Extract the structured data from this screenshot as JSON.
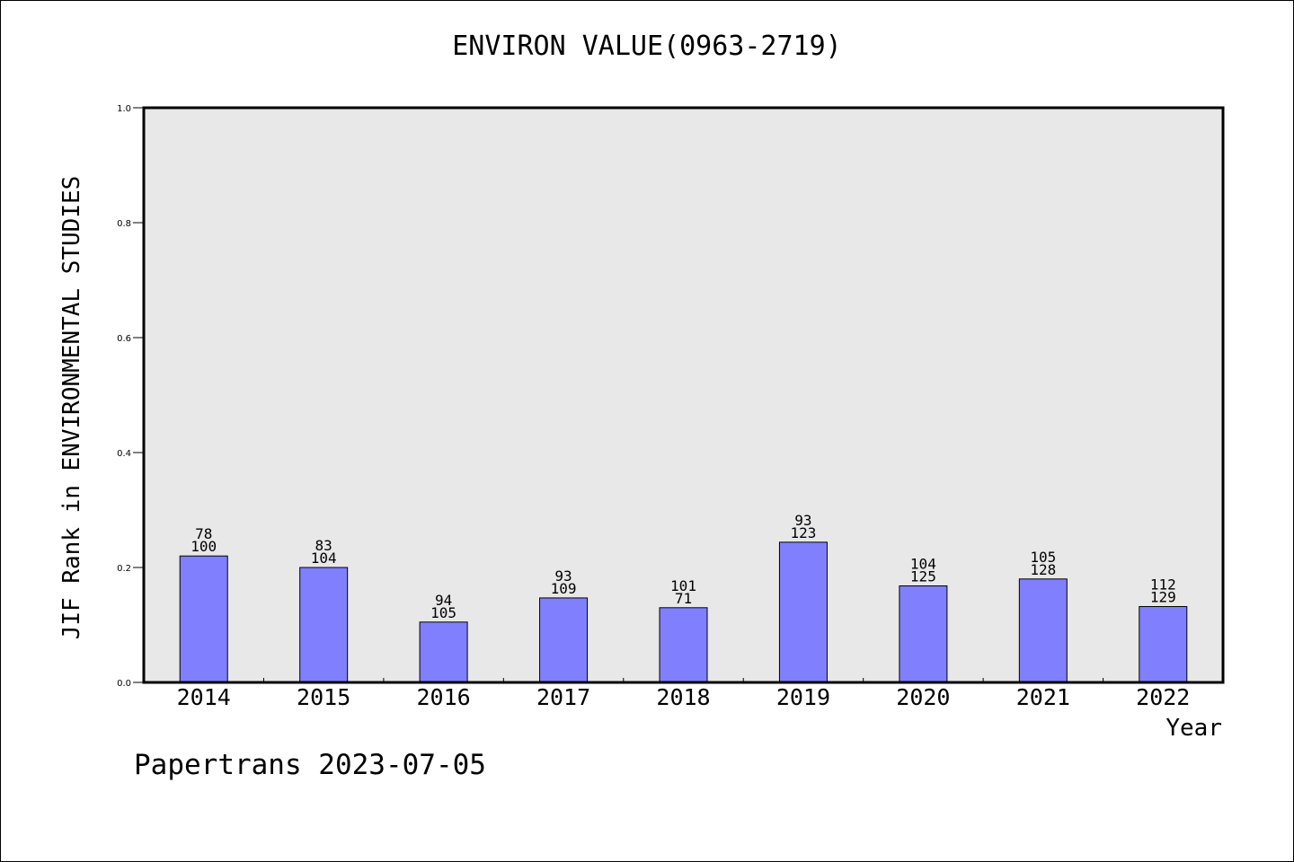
{
  "chart_data": {
    "type": "bar",
    "title": "ENVIRON VALUE(0963-2719)",
    "xlabel": "Year",
    "ylabel": "JIF Rank in ENVIRONMENTAL STUDIES",
    "categories": [
      "2014",
      "2015",
      "2016",
      "2017",
      "2018",
      "2019",
      "2020",
      "2021",
      "2022"
    ],
    "values": [
      0.22,
      0.2,
      0.105,
      0.147,
      0.13,
      0.244,
      0.168,
      0.18,
      0.132
    ],
    "labels_top": [
      "78",
      "83",
      "94",
      "93",
      "101",
      "93",
      "104",
      "105",
      "112"
    ],
    "labels_bottom": [
      "100",
      "104",
      "105",
      "109",
      "71",
      "123",
      "125",
      "128",
      "129"
    ],
    "ylim": [
      0,
      1.0
    ],
    "yticks": [
      "0.0",
      "0.2",
      "0.4",
      "0.6",
      "0.8",
      "1.0"
    ],
    "grid": false,
    "colors": {
      "bar": "#8080ff",
      "plot_background": "#e8e8e8"
    }
  },
  "footer": "Papertrans 2023-07-05"
}
